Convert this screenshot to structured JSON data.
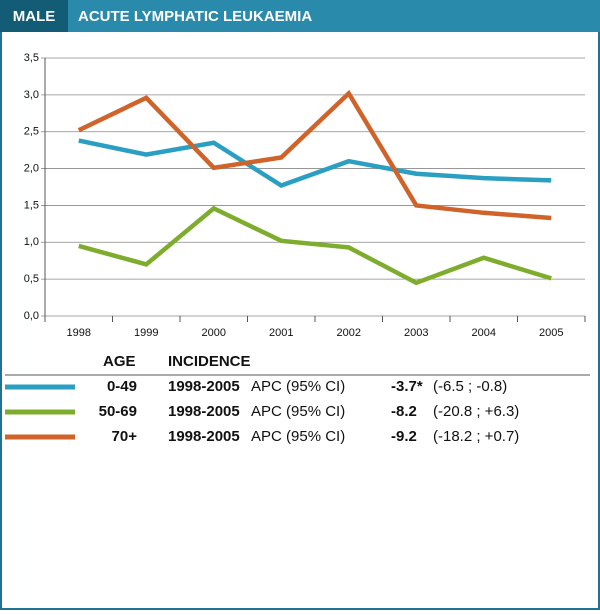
{
  "chart_data": {
    "type": "line",
    "tag": "MALE",
    "title": "ACUTE LYMPHATIC LEUKAEMIA",
    "categories": [
      "1998",
      "1999",
      "2000",
      "2001",
      "2002",
      "2003",
      "2004",
      "2005"
    ],
    "series": [
      {
        "name": "0-49",
        "color": "#2a9fc2",
        "values": [
          2.38,
          2.19,
          2.35,
          1.77,
          2.1,
          1.93,
          1.87,
          1.84
        ]
      },
      {
        "name": "50-69",
        "color": "#7ead2e",
        "values": [
          0.95,
          0.7,
          1.46,
          1.02,
          0.93,
          0.45,
          0.79,
          0.51
        ]
      },
      {
        "name": "70+",
        "color": "#d0632a",
        "values": [
          2.52,
          2.96,
          2.01,
          2.15,
          3.02,
          1.5,
          1.4,
          1.33
        ]
      }
    ],
    "ylim": [
      0,
      3.5
    ],
    "yticks": [
      {
        "value": 0,
        "label": "0,0"
      },
      {
        "value": 0.5,
        "label": "0,5"
      },
      {
        "value": 1,
        "label": "1,0"
      },
      {
        "value": 1.5,
        "label": "1,5"
      },
      {
        "value": 2,
        "label": "2,0"
      },
      {
        "value": 2.5,
        "label": "2,5"
      },
      {
        "value": 3,
        "label": "3,0"
      },
      {
        "value": 3.5,
        "label": "3,5"
      }
    ],
    "grid": true,
    "legend_headers": [
      "AGE",
      "INCIDENCE"
    ],
    "legend_rows": [
      {
        "period": "1998-2005",
        "measure": "APC (95% CI)",
        "apc": "-3.7*",
        "ci": "(-6.5 ; -0.8)"
      },
      {
        "period": "1998-2005",
        "measure": "APC (95% CI)",
        "apc": "-8.2",
        "ci": "(-20.8 ; +6.3)"
      },
      {
        "period": "1998-2005",
        "measure": "APC (95% CI)",
        "apc": "-9.2",
        "ci": "(-18.2 ; +0.7)"
      }
    ]
  }
}
